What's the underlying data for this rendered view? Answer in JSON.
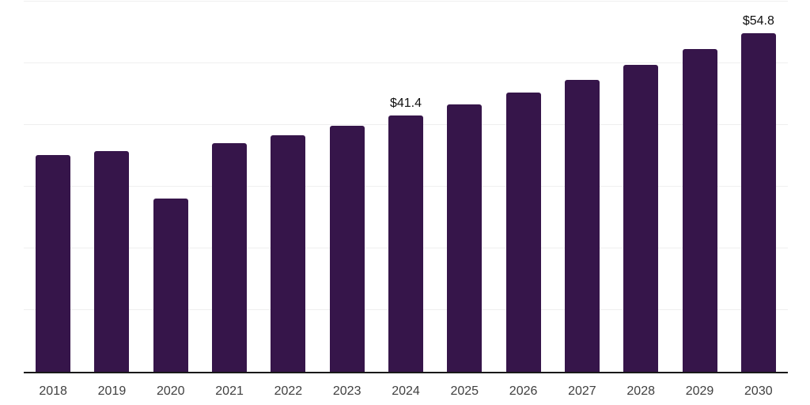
{
  "chart_data": {
    "type": "bar",
    "title": "",
    "xlabel": "",
    "ylabel": "",
    "categories": [
      "2018",
      "2019",
      "2020",
      "2021",
      "2022",
      "2023",
      "2024",
      "2025",
      "2026",
      "2027",
      "2028",
      "2029",
      "2030"
    ],
    "values": [
      35.0,
      35.7,
      28.0,
      37.0,
      38.2,
      39.8,
      41.4,
      43.2,
      45.2,
      47.2,
      49.6,
      52.2,
      54.8
    ],
    "data_labels": [
      null,
      null,
      null,
      null,
      null,
      null,
      "$41.4",
      null,
      null,
      null,
      null,
      null,
      "$54.8"
    ],
    "ylim": [
      0,
      60
    ],
    "gridline_step": 10,
    "grid": true,
    "y_axis_tick_labels": "none",
    "legend": "none"
  },
  "colors": {
    "bar": "#36154a",
    "gridline": "#efefef",
    "axis_line": "#1a1a1a",
    "tick_label": "#404040",
    "data_label": "#101010",
    "background": "#ffffff"
  }
}
